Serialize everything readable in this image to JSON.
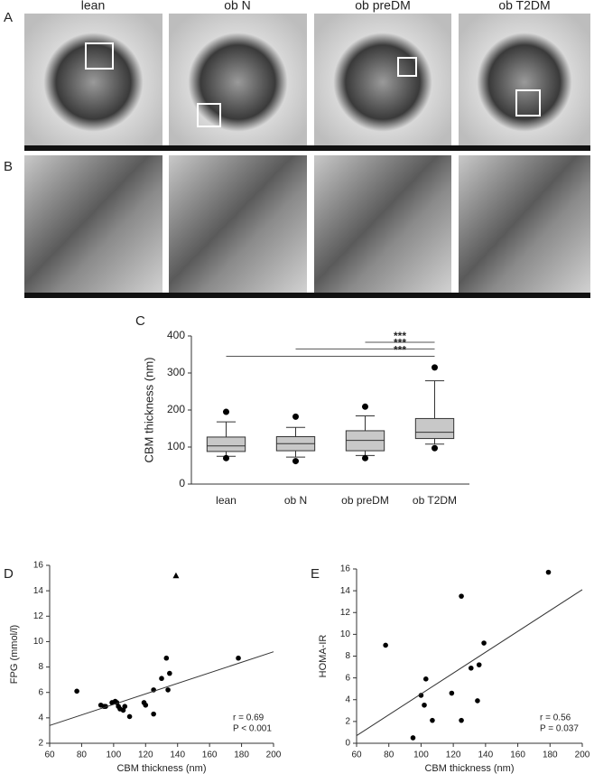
{
  "figure": {
    "columns": [
      "lean",
      "ob N",
      "ob preDM",
      "ob T2DM"
    ],
    "row_labels": [
      "A",
      "B"
    ]
  },
  "chart_data": [
    {
      "type": "box",
      "panel": "C",
      "ylabel": "CBM thickness (nm)",
      "categories": [
        "lean",
        "ob N",
        "ob preDM",
        "ob T2DM"
      ],
      "color": "#c8c8c8",
      "boxes": [
        {
          "whislo": 75,
          "q1": 88,
          "median": 103,
          "q3": 127,
          "whishi": 168,
          "fliers": [
            195,
            70
          ]
        },
        {
          "whislo": 73,
          "q1": 90,
          "median": 109,
          "q3": 128,
          "whishi": 153,
          "fliers": [
            182,
            62
          ]
        },
        {
          "whislo": 77,
          "q1": 90,
          "median": 118,
          "q3": 144,
          "whishi": 184,
          "fliers": [
            209,
            70
          ]
        },
        {
          "whislo": 108,
          "q1": 123,
          "median": 140,
          "q3": 177,
          "whishi": 279,
          "fliers": [
            315,
            97
          ]
        }
      ],
      "comparisons": [
        {
          "groups": [
            "ob preDM",
            "ob T2DM"
          ],
          "y": 383,
          "label": "***"
        },
        {
          "groups": [
            "ob N",
            "ob T2DM"
          ],
          "y": 365,
          "label": "***"
        },
        {
          "groups": [
            "lean",
            "ob T2DM"
          ],
          "y": 345,
          "label": "***"
        }
      ],
      "ylim": [
        0,
        400
      ],
      "yticks": [
        0,
        100,
        200,
        300,
        400
      ]
    },
    {
      "type": "scatter",
      "panel": "D",
      "xlabel": "CBM thickness (nm)",
      "ylabel": "FPG (mmol/l)",
      "color": "#000000",
      "series": [
        {
          "marker": "circle",
          "x": [
            77,
            92,
            94,
            95,
            99,
            101,
            102,
            103,
            104,
            106,
            107,
            110,
            119,
            120,
            125,
            125,
            130,
            133,
            134,
            135,
            178
          ],
          "values": [
            6.1,
            5.0,
            4.9,
            4.9,
            5.2,
            5.3,
            5.2,
            4.9,
            4.7,
            4.6,
            4.9,
            4.1,
            5.2,
            5.0,
            6.2,
            4.3,
            7.1,
            8.7,
            6.2,
            7.5,
            8.7
          ]
        },
        {
          "marker": "triangle",
          "x": [
            139
          ],
          "values": [
            15.2
          ]
        }
      ],
      "fit": {
        "x": [
          60,
          200
        ],
        "values": [
          3.4,
          9.2
        ]
      },
      "annotations": [
        "r = 0.69",
        "P < 0.001"
      ],
      "xlim": [
        60,
        200
      ],
      "xticks": [
        60,
        80,
        100,
        120,
        140,
        160,
        180,
        200
      ],
      "ylim": [
        2,
        16
      ],
      "yticks": [
        2,
        4,
        6,
        8,
        10,
        12,
        14,
        16
      ]
    },
    {
      "type": "scatter",
      "panel": "E",
      "xlabel": "CBM thickness (nm)",
      "ylabel": "HOMA-IR",
      "color": "#000000",
      "series": [
        {
          "marker": "circle",
          "x": [
            78,
            95,
            100,
            102,
            103,
            107,
            119,
            125,
            125,
            131,
            135,
            136,
            139,
            179
          ],
          "values": [
            9.0,
            0.5,
            4.4,
            3.5,
            5.9,
            2.1,
            4.6,
            13.5,
            2.1,
            6.9,
            3.9,
            7.2,
            9.2,
            15.7
          ]
        }
      ],
      "fit": {
        "x": [
          60,
          200
        ],
        "values": [
          0.7,
          14.1
        ]
      },
      "annotations": [
        "r = 0.56",
        "P = 0.037"
      ],
      "xlim": [
        60,
        200
      ],
      "xticks": [
        60,
        80,
        100,
        120,
        140,
        160,
        180,
        200
      ],
      "ylim": [
        0,
        16
      ],
      "yticks": [
        0,
        2,
        4,
        6,
        8,
        10,
        12,
        14,
        16
      ]
    }
  ]
}
